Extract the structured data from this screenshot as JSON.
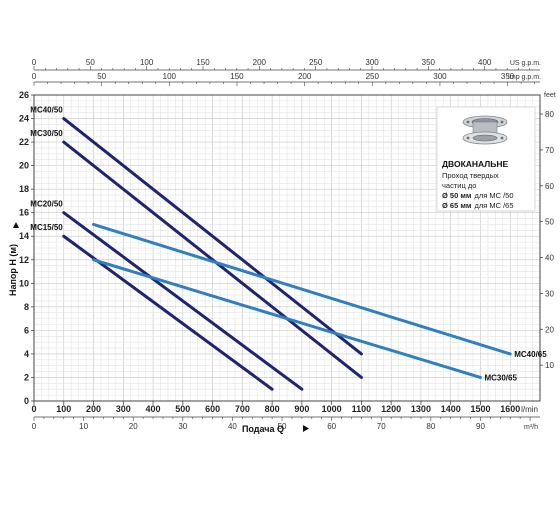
{
  "chart_data": {
    "type": "line",
    "ylabel": "Напор Н (м)",
    "xlabel": "Подача Q",
    "y_ticks_left": [
      "0",
      "2",
      "4",
      "6",
      "8",
      "10",
      "12",
      "14",
      "16",
      "18",
      "20",
      "22",
      "24",
      "26"
    ],
    "y_right_unit": "feet",
    "y_ticks_right": [
      "10",
      "20",
      "30",
      "40",
      "50",
      "60",
      "70",
      "80"
    ],
    "x_ticks_lmin": [
      "0",
      "100",
      "200",
      "300",
      "400",
      "500",
      "600",
      "700",
      "800",
      "900",
      "1000",
      "1100",
      "1200",
      "1300",
      "1400",
      "1500",
      "1600"
    ],
    "x_unit_lmin": "l/min",
    "x_ticks_m3h": [
      "0",
      "10",
      "20",
      "30",
      "40",
      "50",
      "60",
      "70",
      "80",
      "90"
    ],
    "x_unit_m3h": "m³/h",
    "top_us_unit": "US g.p.m.",
    "top_us_ticks": [
      "0",
      "50",
      "100",
      "150",
      "200",
      "250",
      "300",
      "350",
      "400"
    ],
    "top_imp_unit": "Imp g.p.m.",
    "top_imp_ticks": [
      "0",
      "50",
      "100",
      "150",
      "200",
      "250",
      "300",
      "350"
    ],
    "xlim": [
      0,
      1700
    ],
    "ylim": [
      0,
      26
    ],
    "series": [
      {
        "name": "MC40/50",
        "color": "#1e2470",
        "x": [
          100,
          1100
        ],
        "y": [
          24,
          4
        ]
      },
      {
        "name": "MC30/50",
        "color": "#1e2470",
        "x": [
          100,
          1100
        ],
        "y": [
          22,
          2
        ]
      },
      {
        "name": "MC20/50",
        "color": "#1e2470",
        "x": [
          100,
          900
        ],
        "y": [
          16,
          1
        ]
      },
      {
        "name": "MC15/50",
        "color": "#1e2470",
        "x": [
          100,
          800
        ],
        "y": [
          14,
          1
        ]
      },
      {
        "name": "MC40/65",
        "color": "#2f7fc1",
        "x": [
          200,
          1600
        ],
        "y": [
          15,
          4
        ]
      },
      {
        "name": "MC30/65",
        "color": "#2f7fc1",
        "x": [
          200,
          1500
        ],
        "y": [
          12,
          2
        ]
      }
    ],
    "info_box": {
      "icon": "flange-pipe-icon",
      "title": "ДВОКАНАЛЬНЕ",
      "line1": "Проход твердых",
      "line2": "частиц до",
      "line3_bold": "Ø 50 мм",
      "line3_rest": "для МС /50",
      "line4_bold": "Ø 65 мм",
      "line4_rest": "для МС /65"
    },
    "grid": true
  }
}
